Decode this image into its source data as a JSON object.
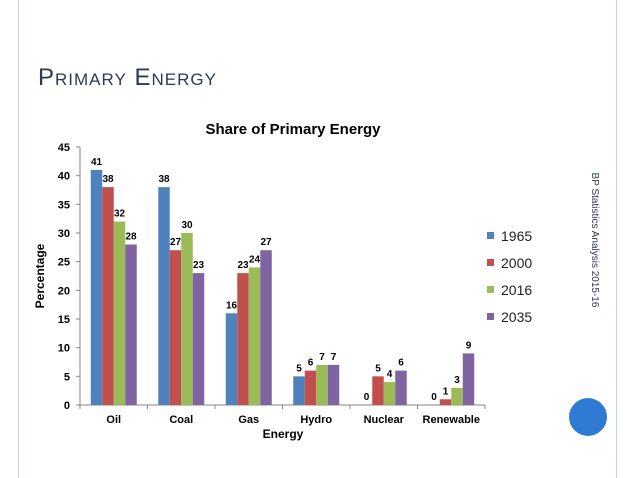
{
  "slide": {
    "title": "Primary Energy",
    "side_text": "BP Statistics Analysis 2015-16"
  },
  "chart_data": {
    "type": "bar",
    "title": "Share of Primary Energy",
    "xlabel": "Energy",
    "ylabel": "Percentage",
    "categories": [
      "Oil",
      "Coal",
      "Gas",
      "Hydro",
      "Nuclear",
      "Renewable"
    ],
    "ylim": [
      0,
      45
    ],
    "yticks": [
      0,
      5,
      10,
      15,
      20,
      25,
      30,
      35,
      40,
      45
    ],
    "grid": false,
    "legend_position": "right",
    "series": [
      {
        "name": "1965",
        "color": "#4f81bd",
        "values": [
          41,
          38,
          16,
          5,
          0,
          0
        ]
      },
      {
        "name": "2000",
        "color": "#c0504d",
        "values": [
          38,
          27,
          23,
          6,
          5,
          1
        ]
      },
      {
        "name": "2016",
        "color": "#9bbb59",
        "values": [
          32,
          30,
          24,
          7,
          4,
          3
        ]
      },
      {
        "name": "2035",
        "color": "#8064a2",
        "values": [
          28,
          23,
          27,
          7,
          6,
          9
        ]
      }
    ]
  }
}
